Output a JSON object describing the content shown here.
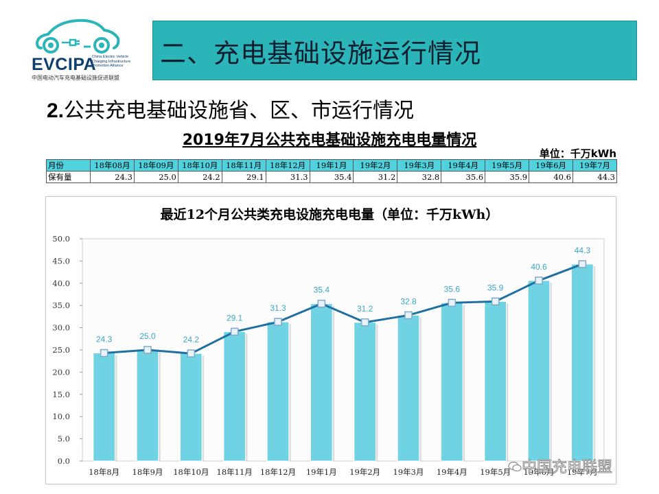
{
  "logo": {
    "name": "EVCIPA",
    "en_lines": [
      "China Electric Vehicle",
      "Charging Infrastructure",
      "Promotion Alliance"
    ],
    "cn": "中国电动汽车充电基础设施促进联盟"
  },
  "header": {
    "title": "二、充电基础设施运行情况"
  },
  "section": {
    "number": "2.",
    "title": "公共充电基础设施省、区、市运行情况"
  },
  "table": {
    "title": "2019年7月公共充电基础设施充电电量情况",
    "unit": "单位：千万kWh",
    "row_labels": [
      "月份",
      "保有量"
    ],
    "months": [
      "18年08月",
      "18年09月",
      "18年10月",
      "18年11月",
      "18年12月",
      "19年1月",
      "19年2月",
      "19年3月",
      "19年4月",
      "19年5月",
      "19年6月",
      "19年7月"
    ],
    "values": [
      "24.3",
      "25.0",
      "24.2",
      "29.1",
      "31.3",
      "35.4",
      "31.2",
      "32.8",
      "35.6",
      "35.9",
      "40.6",
      "44.3"
    ]
  },
  "chart_data": {
    "type": "bar+line",
    "title": "最近12个月公共类充电设施充电电量（单位：千万kWh）",
    "categories": [
      "18年8月",
      "18年9月",
      "18年10月",
      "18年11月",
      "18年12月",
      "19年1月",
      "19年2月",
      "19年3月",
      "19年4月",
      "19年5月",
      "19年6月",
      "19年7月"
    ],
    "values": [
      24.3,
      25.0,
      24.2,
      29.1,
      31.3,
      35.4,
      31.2,
      32.8,
      35.6,
      35.9,
      40.6,
      44.3
    ],
    "labels": [
      "24.3",
      "25.0",
      "24.2",
      "29.1",
      "31.3",
      "35.4",
      "31.2",
      "32.8",
      "35.6",
      "35.9",
      "40.6",
      "44.3"
    ],
    "yticks": [
      "0.0",
      "5.0",
      "10.0",
      "15.0",
      "20.0",
      "25.0",
      "30.0",
      "35.0",
      "40.0",
      "45.0",
      "50.0"
    ],
    "ylim": [
      0,
      50
    ],
    "bar_color": "#6fd3e3",
    "line_color": "#1f6fa0",
    "label_color": "#3aa6c9"
  },
  "watermark": {
    "text": "中国充电联盟"
  }
}
